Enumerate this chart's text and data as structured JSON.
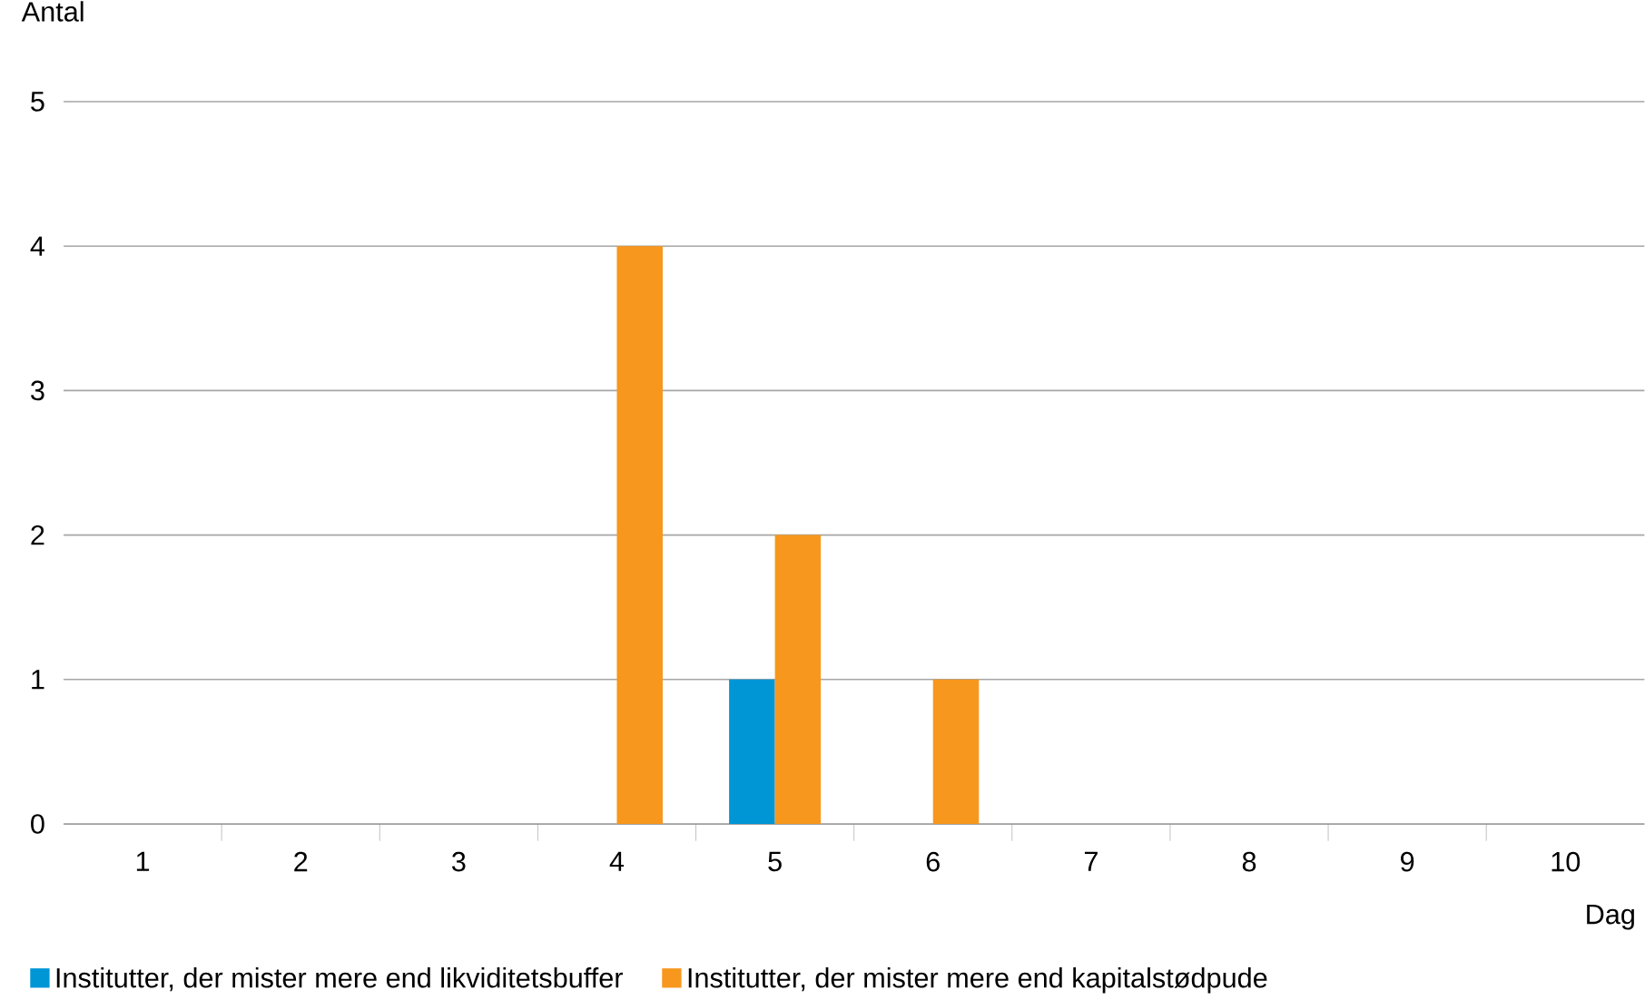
{
  "chart_data": {
    "type": "bar",
    "xlabel": "Dag",
    "ylabel": "Antal",
    "categories": [
      "1",
      "2",
      "3",
      "4",
      "5",
      "6",
      "7",
      "8",
      "9",
      "10"
    ],
    "series": [
      {
        "name": "Institutter, der mister mere end likviditetsbuffer",
        "color": "#0096d6",
        "values": [
          0,
          0,
          0,
          0,
          1,
          0,
          0,
          0,
          0,
          0
        ]
      },
      {
        "name": "Institutter, der mister mere end kapitalstødpude",
        "color": "#f7971d",
        "values": [
          0,
          0,
          0,
          4,
          2,
          1,
          0,
          0,
          0,
          0
        ]
      }
    ],
    "ylim": [
      0,
      5
    ],
    "yticks": [
      0,
      1,
      2,
      3,
      4,
      5
    ],
    "grid": "y",
    "legend": "bottom"
  }
}
